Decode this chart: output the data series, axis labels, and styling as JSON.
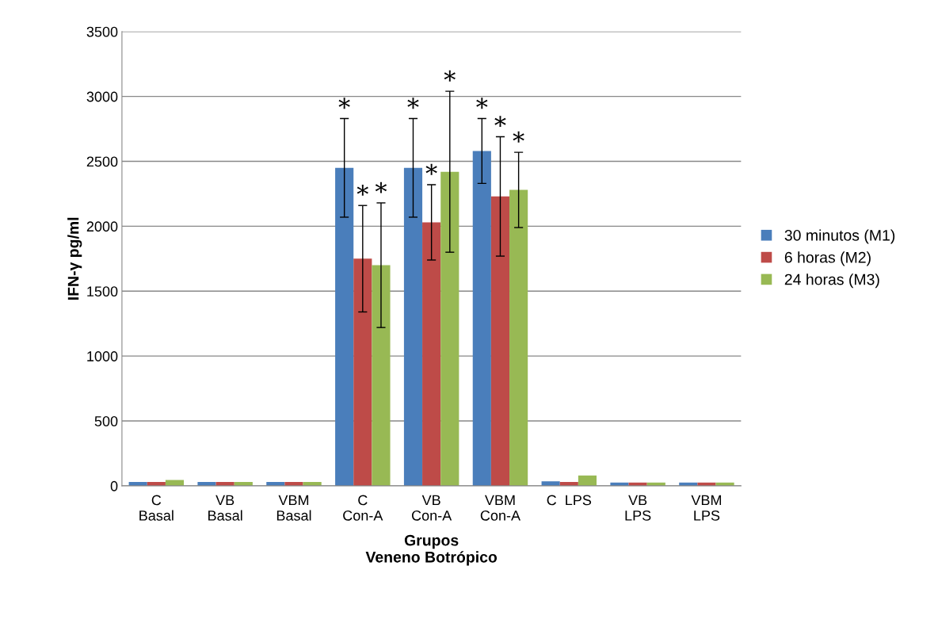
{
  "chart_data": {
    "type": "bar",
    "xlabel": "Grupos\nVeneno Botrópico",
    "ylabel": "IFN-γ pg/ml",
    "categories": [
      "C\nBasal",
      "VB\nBasal",
      "VBM\nBasal",
      "C\nCon-A",
      "VB\nCon-A",
      "VBM\nCon-A",
      "C  LPS",
      "VB\nLPS",
      "VBM\nLPS"
    ],
    "series": [
      {
        "name": "30 minutos (M1)",
        "color": "#4a7ebb",
        "values": [
          30,
          30,
          30,
          2450,
          2450,
          2580,
          35,
          25,
          25
        ],
        "errors": [
          null,
          null,
          null,
          380,
          380,
          250,
          null,
          null,
          null
        ]
      },
      {
        "name": "6 horas (M2)",
        "color": "#be4b48",
        "values": [
          30,
          30,
          30,
          1750,
          2030,
          2230,
          30,
          25,
          25
        ],
        "errors": [
          null,
          null,
          null,
          410,
          290,
          460,
          null,
          null,
          null
        ]
      },
      {
        "name": "24 horas (M3)",
        "color": "#98b954",
        "values": [
          45,
          30,
          30,
          1700,
          2420,
          2280,
          80,
          25,
          25
        ],
        "errors": [
          null,
          null,
          null,
          480,
          620,
          290,
          null,
          null,
          null
        ]
      }
    ],
    "annotations": [
      "*",
      "*",
      "*",
      "*",
      "*",
      "*",
      "*",
      "*",
      "*"
    ],
    "ylim": [
      0,
      3500
    ],
    "yticks": [
      0,
      500,
      1000,
      1500,
      2000,
      2500,
      3000,
      3500
    ],
    "grid": "y",
    "legend": "right"
  }
}
